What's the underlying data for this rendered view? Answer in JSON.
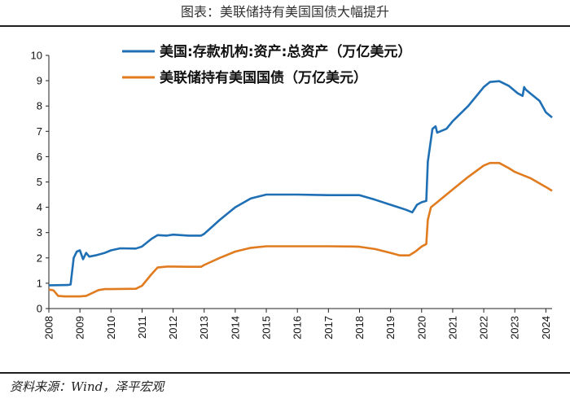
{
  "header": {
    "title": "图表：美联储持有美国国债大幅提升"
  },
  "footer": {
    "source": "资料来源：Wind，泽平宏观"
  },
  "chart_data": {
    "type": "line",
    "title": "",
    "xlabel": "",
    "ylabel": "",
    "ylim": [
      0,
      10
    ],
    "y_ticks": [
      "0",
      "1",
      "2",
      "3",
      "4",
      "5",
      "6",
      "7",
      "8",
      "9",
      "10"
    ],
    "x_range": [
      2008,
      2024.2
    ],
    "x_ticks": [
      "2008",
      "2009",
      "2010",
      "2011",
      "2012",
      "2013",
      "2014",
      "2015",
      "2016",
      "2017",
      "2018",
      "2019",
      "2020",
      "2021",
      "2022",
      "2023",
      "2024"
    ],
    "grid": false,
    "legend_position": "top-center",
    "series": [
      {
        "name": "美国:存款机构:资产:总资产（万亿美元）",
        "color": "#1f6fb5",
        "points": [
          [
            2008.0,
            0.92
          ],
          [
            2008.6,
            0.93
          ],
          [
            2008.7,
            0.95
          ],
          [
            2008.8,
            2.0
          ],
          [
            2008.9,
            2.25
          ],
          [
            2009.0,
            2.3
          ],
          [
            2009.1,
            1.95
          ],
          [
            2009.2,
            2.2
          ],
          [
            2009.3,
            2.05
          ],
          [
            2009.5,
            2.1
          ],
          [
            2009.8,
            2.2
          ],
          [
            2010.0,
            2.3
          ],
          [
            2010.3,
            2.38
          ],
          [
            2010.8,
            2.37
          ],
          [
            2011.0,
            2.45
          ],
          [
            2011.3,
            2.75
          ],
          [
            2011.5,
            2.9
          ],
          [
            2011.8,
            2.88
          ],
          [
            2012.0,
            2.92
          ],
          [
            2012.5,
            2.88
          ],
          [
            2012.9,
            2.88
          ],
          [
            2013.0,
            2.95
          ],
          [
            2013.5,
            3.5
          ],
          [
            2014.0,
            4.0
          ],
          [
            2014.5,
            4.35
          ],
          [
            2015.0,
            4.5
          ],
          [
            2016.0,
            4.5
          ],
          [
            2017.0,
            4.48
          ],
          [
            2018.0,
            4.48
          ],
          [
            2018.5,
            4.3
          ],
          [
            2019.0,
            4.1
          ],
          [
            2019.5,
            3.9
          ],
          [
            2019.7,
            3.8
          ],
          [
            2019.85,
            4.1
          ],
          [
            2020.0,
            4.2
          ],
          [
            2020.15,
            4.25
          ],
          [
            2020.2,
            5.8
          ],
          [
            2020.35,
            7.1
          ],
          [
            2020.45,
            7.2
          ],
          [
            2020.5,
            6.95
          ],
          [
            2020.8,
            7.1
          ],
          [
            2021.0,
            7.4
          ],
          [
            2021.5,
            8.0
          ],
          [
            2022.0,
            8.75
          ],
          [
            2022.2,
            8.95
          ],
          [
            2022.5,
            8.98
          ],
          [
            2022.8,
            8.8
          ],
          [
            2023.1,
            8.5
          ],
          [
            2023.25,
            8.4
          ],
          [
            2023.3,
            8.75
          ],
          [
            2023.35,
            8.65
          ],
          [
            2023.5,
            8.5
          ],
          [
            2023.8,
            8.2
          ],
          [
            2024.0,
            7.75
          ],
          [
            2024.2,
            7.55
          ]
        ]
      },
      {
        "name": "美联储持有美国国债（万亿美元）",
        "color": "#e07b1f",
        "points": [
          [
            2008.0,
            0.75
          ],
          [
            2008.15,
            0.72
          ],
          [
            2008.3,
            0.5
          ],
          [
            2008.5,
            0.48
          ],
          [
            2009.0,
            0.48
          ],
          [
            2009.2,
            0.5
          ],
          [
            2009.6,
            0.73
          ],
          [
            2009.8,
            0.77
          ],
          [
            2010.0,
            0.77
          ],
          [
            2010.8,
            0.78
          ],
          [
            2011.0,
            0.9
          ],
          [
            2011.3,
            1.35
          ],
          [
            2011.5,
            1.62
          ],
          [
            2011.8,
            1.66
          ],
          [
            2012.0,
            1.66
          ],
          [
            2012.5,
            1.65
          ],
          [
            2012.9,
            1.65
          ],
          [
            2013.0,
            1.72
          ],
          [
            2013.5,
            2.0
          ],
          [
            2014.0,
            2.25
          ],
          [
            2014.5,
            2.4
          ],
          [
            2015.0,
            2.46
          ],
          [
            2016.0,
            2.46
          ],
          [
            2017.0,
            2.46
          ],
          [
            2017.8,
            2.45
          ],
          [
            2018.0,
            2.44
          ],
          [
            2018.5,
            2.35
          ],
          [
            2019.0,
            2.2
          ],
          [
            2019.3,
            2.1
          ],
          [
            2019.6,
            2.1
          ],
          [
            2019.8,
            2.25
          ],
          [
            2020.0,
            2.45
          ],
          [
            2020.15,
            2.55
          ],
          [
            2020.2,
            3.5
          ],
          [
            2020.3,
            4.0
          ],
          [
            2020.5,
            4.2
          ],
          [
            2021.0,
            4.7
          ],
          [
            2021.5,
            5.2
          ],
          [
            2022.0,
            5.65
          ],
          [
            2022.2,
            5.75
          ],
          [
            2022.5,
            5.75
          ],
          [
            2022.8,
            5.55
          ],
          [
            2023.0,
            5.4
          ],
          [
            2023.5,
            5.15
          ],
          [
            2024.0,
            4.8
          ],
          [
            2024.2,
            4.65
          ]
        ]
      }
    ]
  }
}
